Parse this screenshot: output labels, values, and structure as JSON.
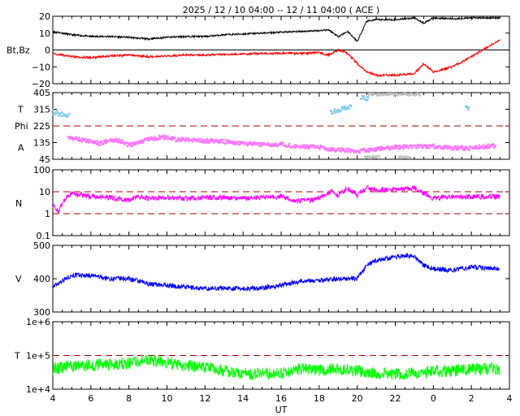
{
  "title": "2025 / 12 / 10   04:00 -- 12 / 11   04:00 ( ACE )",
  "x_axis": {
    "label": "UT",
    "ticks": [
      "4",
      "6",
      "8",
      "10",
      "12",
      "14",
      "16",
      "18",
      "20",
      "22",
      "0",
      "2",
      "4"
    ]
  },
  "colors": {
    "bt": "#000000",
    "bz": "#ff0000",
    "theta": "#87ceeb",
    "phi": "#c0c0c0",
    "azimuth": "#ff77ff",
    "density": "#ff00ff",
    "speed": "#0000ff",
    "temperature": "#00ff00",
    "reference": "#aa0000"
  },
  "chart_data": [
    {
      "type": "line",
      "panel": "magnetic field",
      "ylabel": "Bt,Bz",
      "ylim": [
        -20,
        20
      ],
      "yticks": [
        "20",
        "10",
        "0",
        "−10",
        "−20"
      ],
      "x_hours": [
        4,
        5,
        6,
        7,
        8,
        9,
        10,
        11,
        12,
        13,
        14,
        15,
        16,
        17,
        18,
        18.5,
        19,
        19.5,
        20,
        20.5,
        21,
        22,
        23,
        23.5,
        24,
        25,
        26,
        27.5
      ],
      "series": [
        {
          "values": [
            11,
            9,
            8,
            8,
            7.5,
            6.5,
            7.5,
            8,
            8,
            9,
            9.5,
            10,
            10.5,
            11,
            11.5,
            12,
            8,
            11,
            5,
            17,
            18,
            18,
            19,
            16,
            19,
            18.5,
            19,
            19
          ]
        },
        {
          "values": [
            -2,
            -4,
            -4.5,
            -3.5,
            -3,
            -4,
            -3.5,
            -3,
            -3,
            -2.5,
            -2.5,
            -2,
            -2,
            -2,
            -1.5,
            -3,
            0,
            -2,
            -8,
            -13,
            -15,
            -15,
            -14,
            -8,
            -13,
            -10,
            -4,
            6
          ]
        }
      ]
    },
    {
      "type": "scatter",
      "panel": "direction",
      "ylabel_lines": [
        "T",
        "Phi",
        "A"
      ],
      "ylim": [
        45,
        405
      ],
      "yticks": [
        "405",
        "315",
        "225",
        "135",
        "45"
      ],
      "reference_lines": [
        225
      ],
      "series": [
        {
          "segments": [
            [
              4,
              4.9,
              300,
              280
            ],
            [
              18.6,
              19.7,
              300,
              330
            ],
            [
              20.2,
              20.6,
              380,
              370
            ],
            [
              25.7,
              25.9,
              330,
              320
            ]
          ]
        },
        {
          "segments": [
            [
              20.4,
              21.2,
              55,
              60
            ],
            [
              22.2,
              22.8,
              60,
              55
            ],
            [
              20.6,
              23.3,
              395,
              395
            ]
          ]
        },
        {
          "x_hours": [
            4.8,
            5.5,
            6,
            6.5,
            7,
            7.5,
            8,
            9,
            10,
            10.5,
            11,
            12,
            13,
            14,
            15,
            16,
            17,
            18,
            18.5,
            20.5,
            21,
            22,
            23,
            24,
            25,
            26,
            27.3
          ],
          "values": [
            165,
            150,
            140,
            130,
            150,
            145,
            120,
            155,
            165,
            150,
            150,
            145,
            140,
            130,
            125,
            125,
            115,
            110,
            100,
            90,
            100,
            110,
            115,
            115,
            105,
            105,
            120
          ]
        }
      ]
    },
    {
      "type": "line",
      "panel": "density",
      "ylabel": "N",
      "ylim": [
        0.1,
        100
      ],
      "scale": "log",
      "yticks": [
        "100",
        "10",
        "1",
        "0.1"
      ],
      "reference_lines": [
        10,
        1
      ],
      "x_hours": [
        4,
        4.3,
        5,
        6,
        7,
        8,
        8.5,
        9,
        10,
        11,
        12,
        13,
        14,
        15,
        16,
        16.7,
        17.5,
        18,
        18.7,
        19,
        19.5,
        20,
        20.5,
        21,
        22,
        23,
        23.5,
        24,
        25,
        26,
        27.5
      ],
      "values": [
        2.5,
        1,
        8,
        6,
        5.5,
        4,
        6,
        5,
        5.5,
        5,
        5.5,
        5.5,
        5,
        5.5,
        6,
        4,
        4,
        5,
        10,
        6,
        14,
        7,
        15,
        12,
        13,
        15,
        8,
        5,
        6,
        6,
        6
      ]
    },
    {
      "type": "line",
      "panel": "speed",
      "ylabel": "V",
      "ylim": [
        300,
        500
      ],
      "yticks": [
        "500",
        "400",
        "300"
      ],
      "x_hours": [
        4,
        4.5,
        5,
        6,
        7,
        8,
        9,
        10,
        11,
        12,
        13,
        14,
        15,
        16,
        17,
        18,
        19,
        20,
        20.5,
        21,
        22,
        22.5,
        23,
        23.5,
        24,
        25,
        26,
        27.5
      ],
      "values": [
        375,
        395,
        410,
        410,
        400,
        400,
        385,
        380,
        375,
        370,
        372,
        370,
        372,
        380,
        393,
        395,
        400,
        400,
        440,
        455,
        465,
        470,
        465,
        440,
        430,
        425,
        435,
        430
      ]
    },
    {
      "type": "line",
      "panel": "temperature",
      "ylabel": "T",
      "ylim": [
        10000,
        1000000
      ],
      "scale": "log",
      "yticks": [
        "1e+6",
        "1e+5",
        "1e+4"
      ],
      "reference_lines": [
        100000
      ],
      "x_hours": [
        4,
        5,
        6,
        7,
        8,
        8.5,
        9,
        10,
        11,
        12,
        13,
        14,
        15,
        16,
        17,
        18,
        19,
        20,
        21,
        22,
        23,
        24,
        25,
        26,
        27.5
      ],
      "values": [
        40000,
        50000,
        50000,
        55000,
        60000,
        70000,
        75000,
        60000,
        50000,
        45000,
        35000,
        30000,
        28000,
        30000,
        40000,
        38000,
        40000,
        35000,
        30000,
        28000,
        30000,
        35000,
        35000,
        40000,
        40000
      ]
    }
  ]
}
